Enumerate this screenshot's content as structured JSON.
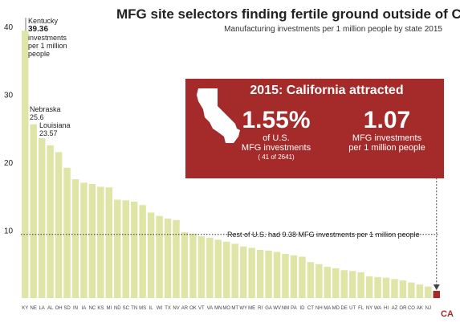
{
  "chart_data": {
    "type": "bar",
    "title": "MFG site selectors finding fertile ground outside of CA",
    "subtitle": "Manufacturing investments per 1 million people by state 2015",
    "ylim": [
      0,
      40
    ],
    "yticks": [
      10,
      20,
      30,
      40
    ],
    "grid": false,
    "categories": [
      "KY",
      "NE",
      "LA",
      "AL",
      "OH",
      "SD",
      "IN",
      "IA",
      "NC",
      "KS",
      "MI",
      "ND",
      "SC",
      "TN",
      "MS",
      "IL",
      "WI",
      "TX",
      "NV",
      "AR",
      "OK",
      "VT",
      "VA",
      "MN",
      "MO",
      "MT",
      "WY",
      "ME",
      "RI",
      "GA",
      "WV",
      "NM",
      "PA",
      "ID",
      "CT",
      "NH",
      "MA",
      "MD",
      "DE",
      "UT",
      "FL",
      "NY",
      "WA",
      "HI",
      "AZ",
      "OR",
      "CO",
      "AK",
      "NJ",
      "CA"
    ],
    "values": [
      39.36,
      25.6,
      23.57,
      22.5,
      21.5,
      19.2,
      17.5,
      17.0,
      16.8,
      16.4,
      16.3,
      14.5,
      14.4,
      14.2,
      13.7,
      12.6,
      12.1,
      11.7,
      11.5,
      9.7,
      9.5,
      9.1,
      8.9,
      8.6,
      8.3,
      8.0,
      7.6,
      7.4,
      7.1,
      7.0,
      6.8,
      6.5,
      6.3,
      6.1,
      5.3,
      5.0,
      4.6,
      4.4,
      4.1,
      4.0,
      3.8,
      3.2,
      3.1,
      3.0,
      2.8,
      2.6,
      2.3,
      2.0,
      1.7,
      1.07
    ],
    "highlight": "CA",
    "bar_color": "#dfe5a6",
    "highlight_color": "#a52a2a",
    "reference": {
      "value": 9.38,
      "label": "Rest of U.S. had 9.38 MFG investments per 1 million people"
    },
    "annotations": [
      {
        "state": "Kentucky",
        "value": "39.36",
        "text": "investments per 1 million people"
      },
      {
        "state": "Nebraska",
        "value": "25.6"
      },
      {
        "state": "Louisiana",
        "value": "23.57"
      }
    ]
  },
  "callout": {
    "title": "2015: California attracted",
    "pct": "1.55%",
    "pct_desc_1": "of U.S.",
    "pct_desc_2": "MFG investments",
    "pct_count": "( 41 of 2641)",
    "inv": "1.07",
    "inv_desc_1": "MFG investments",
    "inv_desc_2": "per 1 million people",
    "ca_label": "CA"
  }
}
